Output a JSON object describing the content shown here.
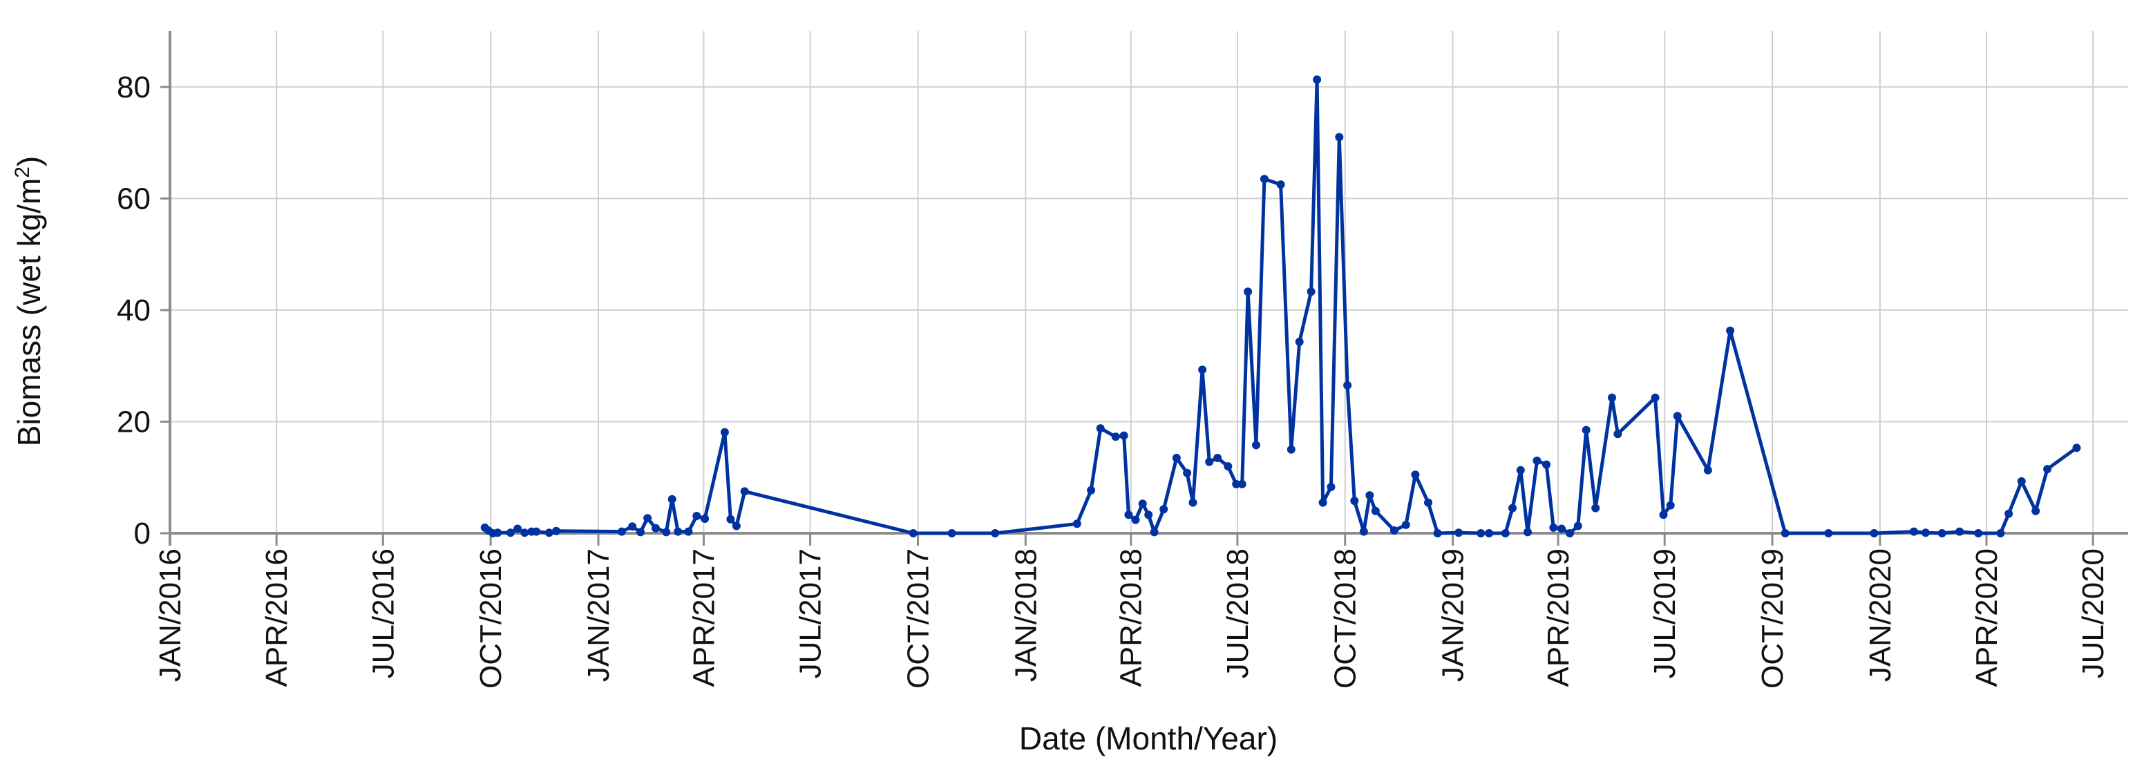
{
  "chart_data": {
    "type": "line",
    "title": "",
    "xlabel": "Date (Month/Year)",
    "ylabel": {
      "main": "Biomass (wet kg/m",
      "sup": "2",
      "end": ")"
    },
    "xlim": [
      "2016-01-01",
      "2020-07-31"
    ],
    "ylim": [
      0,
      90
    ],
    "grid": true,
    "legend": "none",
    "series_color": "#0033a0",
    "x_ticks": [
      {
        "date": "2016-01-01",
        "label": "JAN/2016"
      },
      {
        "date": "2016-04-01",
        "label": "APR/2016"
      },
      {
        "date": "2016-07-01",
        "label": "JUL/2016"
      },
      {
        "date": "2016-10-01",
        "label": "OCT/2016"
      },
      {
        "date": "2017-01-01",
        "label": "JAN/2017"
      },
      {
        "date": "2017-04-01",
        "label": "APR/2017"
      },
      {
        "date": "2017-07-01",
        "label": "JUL/2017"
      },
      {
        "date": "2017-10-01",
        "label": "OCT/2017"
      },
      {
        "date": "2018-01-01",
        "label": "JAN/2018"
      },
      {
        "date": "2018-04-01",
        "label": "APR/2018"
      },
      {
        "date": "2018-07-01",
        "label": "JUL/2018"
      },
      {
        "date": "2018-10-01",
        "label": "OCT/2018"
      },
      {
        "date": "2019-01-01",
        "label": "JAN/2019"
      },
      {
        "date": "2019-04-01",
        "label": "APR/2019"
      },
      {
        "date": "2019-07-01",
        "label": "JUL/2019"
      },
      {
        "date": "2019-10-01",
        "label": "OCT/2019"
      },
      {
        "date": "2020-01-01",
        "label": "JAN/2020"
      },
      {
        "date": "2020-04-01",
        "label": "APR/2020"
      },
      {
        "date": "2020-07-01",
        "label": "JUL/2020"
      }
    ],
    "y_ticks": [
      0,
      20,
      40,
      60,
      80
    ],
    "points": [
      [
        "2016-09-26",
        1.0
      ],
      [
        "2016-09-29",
        0.5
      ],
      [
        "2016-10-03",
        0.0
      ],
      [
        "2016-10-07",
        0.1
      ],
      [
        "2016-10-18",
        0.1
      ],
      [
        "2016-10-24",
        0.8
      ],
      [
        "2016-10-30",
        0.1
      ],
      [
        "2016-11-05",
        0.3
      ],
      [
        "2016-11-09",
        0.3
      ],
      [
        "2016-11-20",
        0.1
      ],
      [
        "2016-11-26",
        0.4
      ],
      [
        "2017-01-21",
        0.3
      ],
      [
        "2017-01-30",
        1.2
      ],
      [
        "2017-02-06",
        0.2
      ],
      [
        "2017-02-12",
        2.7
      ],
      [
        "2017-02-19",
        0.9
      ],
      [
        "2017-02-28",
        0.2
      ],
      [
        "2017-03-05",
        6.1
      ],
      [
        "2017-03-10",
        0.3
      ],
      [
        "2017-03-19",
        0.3
      ],
      [
        "2017-03-26",
        3.1
      ],
      [
        "2017-04-02",
        2.6
      ],
      [
        "2017-04-19",
        18.1
      ],
      [
        "2017-04-24",
        2.5
      ],
      [
        "2017-04-29",
        1.3
      ],
      [
        "2017-05-06",
        7.5
      ],
      [
        "2017-09-27",
        0.0
      ],
      [
        "2017-10-30",
        0.0
      ],
      [
        "2017-12-06",
        0.0
      ],
      [
        "2018-02-14",
        1.7
      ],
      [
        "2018-02-26",
        7.7
      ],
      [
        "2018-03-06",
        18.8
      ],
      [
        "2018-03-19",
        17.3
      ],
      [
        "2018-03-26",
        17.5
      ],
      [
        "2018-03-30",
        3.3
      ],
      [
        "2018-04-05",
        2.4
      ],
      [
        "2018-04-11",
        5.3
      ],
      [
        "2018-04-16",
        3.3
      ],
      [
        "2018-04-21",
        0.2
      ],
      [
        "2018-04-29",
        4.3
      ],
      [
        "2018-05-10",
        13.5
      ],
      [
        "2018-05-19",
        10.8
      ],
      [
        "2018-05-24",
        5.5
      ],
      [
        "2018-06-01",
        29.3
      ],
      [
        "2018-06-07",
        12.8
      ],
      [
        "2018-06-14",
        13.5
      ],
      [
        "2018-06-23",
        12.0
      ],
      [
        "2018-06-30",
        8.8
      ],
      [
        "2018-07-05",
        8.8
      ],
      [
        "2018-07-10",
        43.3
      ],
      [
        "2018-07-17",
        15.8
      ],
      [
        "2018-07-24",
        63.5
      ],
      [
        "2018-08-07",
        62.5
      ],
      [
        "2018-08-16",
        15.0
      ],
      [
        "2018-08-23",
        34.3
      ],
      [
        "2018-09-02",
        43.3
      ],
      [
        "2018-09-07",
        81.3
      ],
      [
        "2018-09-12",
        5.5
      ],
      [
        "2018-09-19",
        8.3
      ],
      [
        "2018-09-26",
        71.0
      ],
      [
        "2018-10-03",
        26.5
      ],
      [
        "2018-10-09",
        5.8
      ],
      [
        "2018-10-17",
        0.3
      ],
      [
        "2018-10-22",
        6.8
      ],
      [
        "2018-10-27",
        4.0
      ],
      [
        "2018-11-12",
        0.5
      ],
      [
        "2018-11-22",
        1.5
      ],
      [
        "2018-11-30",
        10.5
      ],
      [
        "2018-12-11",
        5.5
      ],
      [
        "2018-12-19",
        0.0
      ],
      [
        "2019-01-06",
        0.1
      ],
      [
        "2019-01-25",
        0.0
      ],
      [
        "2019-02-01",
        0.0
      ],
      [
        "2019-02-15",
        0.0
      ],
      [
        "2019-02-21",
        4.5
      ],
      [
        "2019-02-28",
        11.3
      ],
      [
        "2019-03-06",
        0.2
      ],
      [
        "2019-03-14",
        13.0
      ],
      [
        "2019-03-22",
        12.3
      ],
      [
        "2019-03-28",
        1.0
      ],
      [
        "2019-04-04",
        0.8
      ],
      [
        "2019-04-11",
        0.0
      ],
      [
        "2019-04-18",
        1.3
      ],
      [
        "2019-04-25",
        18.5
      ],
      [
        "2019-05-03",
        4.5
      ],
      [
        "2019-05-17",
        24.3
      ],
      [
        "2019-05-22",
        17.8
      ],
      [
        "2019-06-23",
        24.3
      ],
      [
        "2019-06-30",
        3.3
      ],
      [
        "2019-07-06",
        5.0
      ],
      [
        "2019-07-12",
        21.0
      ],
      [
        "2019-08-07",
        11.3
      ],
      [
        "2019-08-26",
        36.3
      ],
      [
        "2019-10-12",
        0.0
      ],
      [
        "2019-11-18",
        0.0
      ],
      [
        "2019-12-27",
        0.0
      ],
      [
        "2020-01-30",
        0.3
      ],
      [
        "2020-02-09",
        0.1
      ],
      [
        "2020-02-23",
        0.0
      ],
      [
        "2020-03-09",
        0.3
      ],
      [
        "2020-03-25",
        0.0
      ],
      [
        "2020-04-13",
        0.0
      ],
      [
        "2020-04-20",
        3.5
      ],
      [
        "2020-05-01",
        9.3
      ],
      [
        "2020-05-13",
        4.0
      ],
      [
        "2020-05-23",
        11.5
      ],
      [
        "2020-06-17",
        15.3
      ]
    ]
  }
}
